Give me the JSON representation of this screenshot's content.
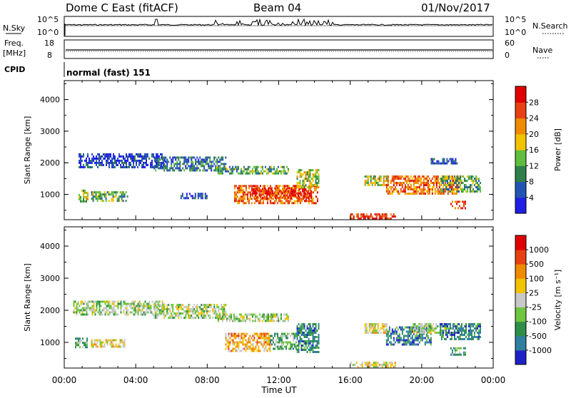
{
  "header": {
    "station": "Dome C East (fitACF)",
    "beam": "Beam 04",
    "date": "01/Nov/2017"
  },
  "panels": {
    "nsky": {
      "label": "N.Sky",
      "top_tick": "10^5",
      "bottom_tick": "10^0",
      "right_top_tick": "10^5",
      "right_bottom_tick": "10^0",
      "right_label": "N.Search"
    },
    "freq": {
      "label_line1": "Freq.",
      "label_line2": "[MHz]",
      "top_tick": "18",
      "bottom_tick": "8",
      "right_top_tick": "60",
      "right_bottom_tick": "0",
      "right_label": "Nave"
    },
    "cpid": {
      "label": "CPID",
      "text": "normal (fast) 151"
    }
  },
  "chart_data": [
    {
      "type": "heatmap",
      "title": "Power",
      "ylabel": "Slant Range [km]",
      "xlabel": "Time UT",
      "x_ticks": [
        "00:00",
        "04:00",
        "08:00",
        "12:00",
        "16:00",
        "20:00",
        "00:00"
      ],
      "y_ticks": [
        "1000",
        "2000",
        "3000",
        "4000"
      ],
      "ylim": [
        200,
        4600
      ],
      "xlim": [
        0,
        24
      ],
      "colorbar": {
        "label": "Power [dB]",
        "tick_labels": [
          "4",
          "8",
          "12",
          "16",
          "20",
          "24",
          "28"
        ],
        "colors": [
          "#1f1fe6",
          "#2255b3",
          "#2f7f4a",
          "#5fbe3e",
          "#f2c300",
          "#f08a00",
          "#e84010",
          "#e00000"
        ]
      },
      "regions": [
        {
          "t0": 0.8,
          "t1": 5.6,
          "r0": 1850,
          "r1": 2300,
          "level": 1
        },
        {
          "t0": 5.0,
          "t1": 9.0,
          "r0": 1750,
          "r1": 2200,
          "level": 2
        },
        {
          "t0": 8.5,
          "t1": 12.5,
          "r0": 1650,
          "r1": 1900,
          "level": 3
        },
        {
          "t0": 9.5,
          "t1": 14.2,
          "r0": 700,
          "r1": 1300,
          "level": 6
        },
        {
          "t0": 10.5,
          "t1": 13.8,
          "r0": 900,
          "r1": 1200,
          "level": 7
        },
        {
          "t0": 13.0,
          "t1": 14.2,
          "r0": 1200,
          "r1": 1800,
          "level": 4
        },
        {
          "t0": 1.5,
          "t1": 3.5,
          "r0": 800,
          "r1": 1100,
          "level": 3
        },
        {
          "t0": 0.8,
          "t1": 1.3,
          "r0": 800,
          "r1": 1150,
          "level": 4
        },
        {
          "t0": 16.8,
          "t1": 18.0,
          "r0": 1300,
          "r1": 1600,
          "level": 4
        },
        {
          "t0": 18.0,
          "t1": 22.0,
          "r0": 1000,
          "r1": 1600,
          "level": 6
        },
        {
          "t0": 21.0,
          "t1": 23.3,
          "r0": 1100,
          "r1": 1600,
          "level": 3
        },
        {
          "t0": 21.6,
          "t1": 22.4,
          "r0": 550,
          "r1": 800,
          "level": 7
        },
        {
          "t0": 16.0,
          "t1": 18.5,
          "r0": 200,
          "r1": 400,
          "level": 7
        },
        {
          "t0": 6.5,
          "t1": 8.0,
          "r0": 900,
          "r1": 1050,
          "level": 1
        },
        {
          "t0": 20.5,
          "t1": 22.0,
          "r0": 1950,
          "r1": 2150,
          "level": 1
        }
      ]
    },
    {
      "type": "heatmap",
      "title": "Velocity",
      "ylabel": "Slant Range [km]",
      "xlabel": "Time UT",
      "x_ticks": [
        "00:00",
        "04:00",
        "08:00",
        "12:00",
        "16:00",
        "20:00",
        "00:00"
      ],
      "y_ticks": [
        "1000",
        "2000",
        "3000",
        "4000"
      ],
      "ylim": [
        200,
        4600
      ],
      "xlim": [
        0,
        24
      ],
      "colorbar": {
        "label": "Velocity [m s⁻¹]",
        "tick_labels": [
          "1000",
          "500",
          "100",
          "25",
          "-25",
          "-100",
          "-500",
          "-1000"
        ],
        "colors": [
          "#2020c8",
          "#2f7fa0",
          "#2f8f4a",
          "#6ec53e",
          "#c8c8c8",
          "#f2c300",
          "#f08a00",
          "#e84010",
          "#e00000"
        ]
      },
      "regions": [
        {
          "t0": 0.5,
          "t1": 5.6,
          "r0": 1850,
          "r1": 2300,
          "level": 4
        },
        {
          "t0": 5.0,
          "t1": 9.0,
          "r0": 1750,
          "r1": 2200,
          "level": 4
        },
        {
          "t0": 8.5,
          "t1": 12.5,
          "r0": 1650,
          "r1": 1900,
          "level": 4
        },
        {
          "t0": 9.0,
          "t1": 11.5,
          "r0": 700,
          "r1": 1300,
          "level": 6
        },
        {
          "t0": 11.5,
          "t1": 13.0,
          "r0": 800,
          "r1": 1300,
          "level": 3
        },
        {
          "t0": 13.0,
          "t1": 14.2,
          "r0": 700,
          "r1": 1600,
          "level": 2
        },
        {
          "t0": 1.5,
          "t1": 3.4,
          "r0": 850,
          "r1": 1100,
          "level": 5
        },
        {
          "t0": 0.6,
          "t1": 1.3,
          "r0": 850,
          "r1": 1150,
          "level": 3
        },
        {
          "t0": 16.8,
          "t1": 18.0,
          "r0": 1300,
          "r1": 1600,
          "level": 5
        },
        {
          "t0": 18.0,
          "t1": 20.5,
          "r0": 900,
          "r1": 1500,
          "level": 2
        },
        {
          "t0": 19.5,
          "t1": 21.5,
          "r0": 1300,
          "r1": 1600,
          "level": 4
        },
        {
          "t0": 21.0,
          "t1": 23.3,
          "r0": 1100,
          "r1": 1600,
          "level": 2
        },
        {
          "t0": 21.6,
          "t1": 22.4,
          "r0": 600,
          "r1": 850,
          "level": 3
        },
        {
          "t0": 16.0,
          "t1": 18.5,
          "r0": 250,
          "r1": 400,
          "level": 5
        }
      ]
    }
  ]
}
